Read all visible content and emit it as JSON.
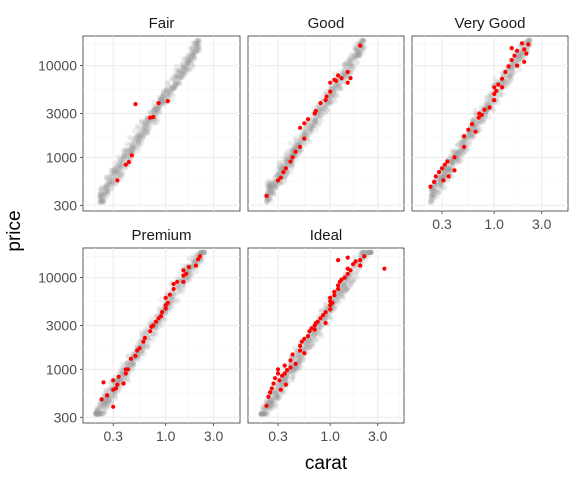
{
  "chart_data": {
    "type": "scatter",
    "facets": [
      "Fair",
      "Good",
      "Very Good",
      "Premium",
      "Ideal"
    ],
    "xlabel": "carat",
    "ylabel": "price",
    "x_scale": "log10",
    "y_scale": "log10",
    "xlim": [
      0.15,
      5.5
    ],
    "ylim": [
      260,
      21000
    ],
    "x_ticks": [
      0.3,
      1.0,
      3.0
    ],
    "x_tick_labels": [
      "0.3",
      "1.0",
      "3.0"
    ],
    "y_ticks": [
      300,
      1000,
      3000,
      10000
    ],
    "y_tick_labels": [
      "300",
      "1000",
      "3000",
      "10000"
    ],
    "background_series": {
      "name": "",
      "color": "#999999",
      "description_only": false
    },
    "highlight_color": "#ff0000",
    "background_color": "#8c8c8c",
    "panels": [
      {
        "facet": "Fair",
        "points": [
          [
            0.33,
            560
          ],
          [
            0.4,
            830
          ],
          [
            0.43,
            890
          ],
          [
            0.46,
            1050
          ],
          [
            0.5,
            3800
          ],
          [
            0.7,
            2700
          ],
          [
            0.75,
            2750
          ],
          [
            0.85,
            3900
          ],
          [
            1.05,
            4100
          ]
        ]
      },
      {
        "facet": "Good",
        "points": [
          [
            0.23,
            380
          ],
          [
            0.3,
            560
          ],
          [
            0.32,
            600
          ],
          [
            0.34,
            690
          ],
          [
            0.36,
            760
          ],
          [
            0.4,
            900
          ],
          [
            0.42,
            1000
          ],
          [
            0.45,
            1150
          ],
          [
            0.5,
            1300
          ],
          [
            0.55,
            1600
          ],
          [
            0.5,
            2100
          ],
          [
            0.55,
            2350
          ],
          [
            0.6,
            2600
          ],
          [
            0.7,
            3000
          ],
          [
            0.72,
            3200
          ],
          [
            0.8,
            3900
          ],
          [
            0.9,
            4200
          ],
          [
            0.92,
            4600
          ],
          [
            1.0,
            5200
          ],
          [
            1.0,
            6500
          ],
          [
            1.1,
            7000
          ],
          [
            1.15,
            6800
          ],
          [
            1.3,
            7300
          ],
          [
            1.2,
            7800
          ],
          [
            1.5,
            6500
          ],
          [
            1.5,
            8500
          ],
          [
            1.6,
            7300
          ],
          [
            2.0,
            16500
          ]
        ]
      },
      {
        "facet": "Very Good",
        "points": [
          [
            0.23,
            480
          ],
          [
            0.25,
            540
          ],
          [
            0.26,
            620
          ],
          [
            0.28,
            690
          ],
          [
            0.3,
            760
          ],
          [
            0.31,
            560
          ],
          [
            0.32,
            830
          ],
          [
            0.34,
            900
          ],
          [
            0.35,
            620
          ],
          [
            0.4,
            720
          ],
          [
            0.4,
            1000
          ],
          [
            0.5,
            1300
          ],
          [
            0.5,
            1700
          ],
          [
            0.55,
            2000
          ],
          [
            0.6,
            2300
          ],
          [
            0.65,
            1900
          ],
          [
            0.7,
            2700
          ],
          [
            0.71,
            3000
          ],
          [
            0.75,
            2900
          ],
          [
            0.8,
            3300
          ],
          [
            0.9,
            3500
          ],
          [
            1.0,
            4200
          ],
          [
            1.0,
            4900
          ],
          [
            1.0,
            5800
          ],
          [
            1.05,
            5300
          ],
          [
            1.1,
            6200
          ],
          [
            1.2,
            5800
          ],
          [
            1.2,
            7200
          ],
          [
            1.3,
            8500
          ],
          [
            1.4,
            9800
          ],
          [
            1.5,
            11500
          ],
          [
            1.6,
            12800
          ],
          [
            1.7,
            14500
          ],
          [
            1.5,
            15500
          ],
          [
            2.0,
            15000
          ],
          [
            2.2,
            17000
          ],
          [
            1.9,
            17500
          ],
          [
            2.1,
            13500
          ],
          [
            2.0,
            11000
          ],
          [
            1.7,
            10000
          ]
        ]
      },
      {
        "facet": "Premium",
        "points": [
          [
            0.23,
            470
          ],
          [
            0.24,
            720
          ],
          [
            0.26,
            520
          ],
          [
            0.3,
            390
          ],
          [
            0.3,
            600
          ],
          [
            0.3,
            760
          ],
          [
            0.32,
            620
          ],
          [
            0.33,
            680
          ],
          [
            0.34,
            830
          ],
          [
            0.38,
            700
          ],
          [
            0.4,
            900
          ],
          [
            0.4,
            1000
          ],
          [
            0.42,
            1000
          ],
          [
            0.45,
            1300
          ],
          [
            0.5,
            1400
          ],
          [
            0.52,
            1600
          ],
          [
            0.55,
            1700
          ],
          [
            0.6,
            2000
          ],
          [
            0.62,
            2200
          ],
          [
            0.7,
            2600
          ],
          [
            0.72,
            2900
          ],
          [
            0.75,
            3000
          ],
          [
            0.8,
            3300
          ],
          [
            0.85,
            3600
          ],
          [
            0.9,
            3800
          ],
          [
            0.92,
            4200
          ],
          [
            1.0,
            4600
          ],
          [
            1.0,
            5000
          ],
          [
            1.0,
            6000
          ],
          [
            1.05,
            5300
          ],
          [
            1.1,
            6500
          ],
          [
            1.2,
            7500
          ],
          [
            1.2,
            8500
          ],
          [
            1.3,
            9000
          ],
          [
            1.5,
            10500
          ],
          [
            1.5,
            12000
          ],
          [
            1.6,
            11000
          ],
          [
            1.7,
            13000
          ],
          [
            2.0,
            13500
          ],
          [
            2.1,
            15800
          ],
          [
            2.2,
            17000
          ],
          [
            1.5,
            9000
          ]
        ]
      },
      {
        "facet": "Ideal",
        "points": [
          [
            0.23,
            400
          ],
          [
            0.24,
            500
          ],
          [
            0.25,
            560
          ],
          [
            0.26,
            620
          ],
          [
            0.27,
            700
          ],
          [
            0.28,
            800
          ],
          [
            0.3,
            900
          ],
          [
            0.3,
            1000
          ],
          [
            0.31,
            760
          ],
          [
            0.32,
            600
          ],
          [
            0.33,
            850
          ],
          [
            0.35,
            900
          ],
          [
            0.35,
            1100
          ],
          [
            0.36,
            680
          ],
          [
            0.37,
            980
          ],
          [
            0.4,
            1050
          ],
          [
            0.4,
            1250
          ],
          [
            0.42,
            1450
          ],
          [
            0.45,
            1150
          ],
          [
            0.5,
            1600
          ],
          [
            0.5,
            1800
          ],
          [
            0.52,
            2000
          ],
          [
            0.55,
            1500
          ],
          [
            0.55,
            2150
          ],
          [
            0.6,
            2300
          ],
          [
            0.62,
            2600
          ],
          [
            0.65,
            2800
          ],
          [
            0.7,
            2700
          ],
          [
            0.7,
            3000
          ],
          [
            0.72,
            3200
          ],
          [
            0.75,
            3300
          ],
          [
            0.8,
            3600
          ],
          [
            0.85,
            3900
          ],
          [
            0.9,
            3200
          ],
          [
            0.9,
            4200
          ],
          [
            1.0,
            4500
          ],
          [
            1.0,
            5000
          ],
          [
            1.0,
            5500
          ],
          [
            1.0,
            6000
          ],
          [
            1.05,
            5300
          ],
          [
            1.1,
            6400
          ],
          [
            1.1,
            7000
          ],
          [
            1.2,
            7500
          ],
          [
            1.2,
            8200
          ],
          [
            1.25,
            9000
          ],
          [
            1.3,
            9500
          ],
          [
            1.4,
            10000
          ],
          [
            1.5,
            11000
          ],
          [
            1.5,
            12500
          ],
          [
            1.6,
            12000
          ],
          [
            1.7,
            14000
          ],
          [
            1.8,
            15000
          ],
          [
            2.0,
            15500
          ],
          [
            2.0,
            13500
          ],
          [
            1.2,
            15500
          ],
          [
            1.5,
            16500
          ],
          [
            2.2,
            17000
          ],
          [
            3.5,
            12500
          ]
        ]
      }
    ]
  }
}
